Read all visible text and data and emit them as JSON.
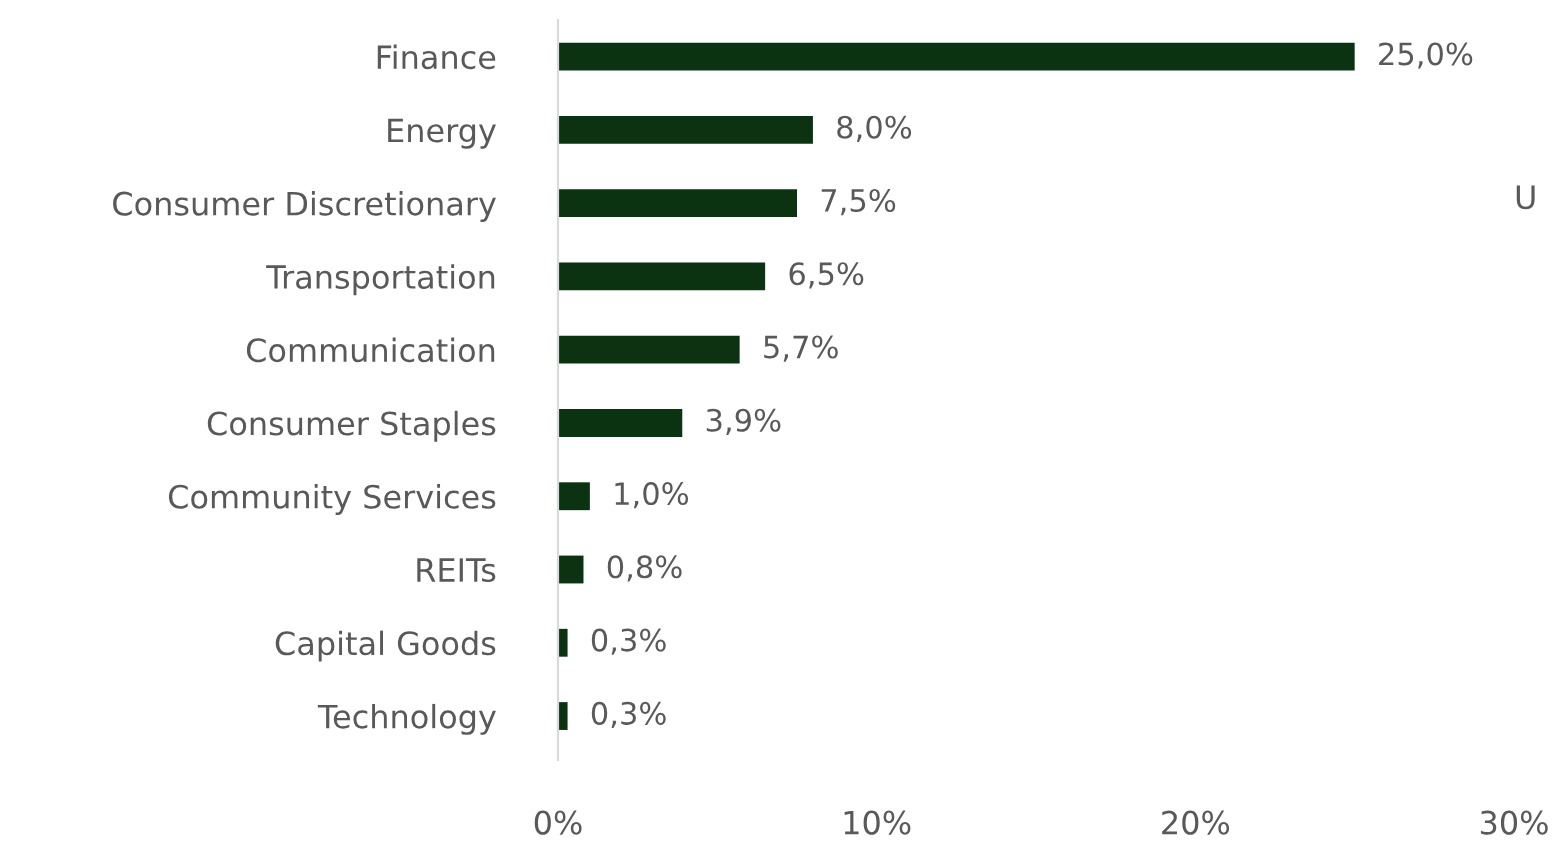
{
  "chart_data": {
    "type": "bar",
    "orientation": "horizontal",
    "categories": [
      "Finance",
      "Energy",
      "Consumer Discretionary",
      "Transportation",
      "Communication",
      "Consumer Staples",
      "Community Services",
      "REITs",
      "Capital Goods",
      "Technology"
    ],
    "values": [
      25.0,
      8.0,
      7.5,
      6.5,
      5.7,
      3.9,
      1.0,
      0.8,
      0.3,
      0.3
    ],
    "value_labels": [
      "25,0%",
      "8,0%",
      "7,5%",
      "6,5%",
      "5,7%",
      "3,9%",
      "1,0%",
      "0,8%",
      "0,3%",
      "0,3%"
    ],
    "color": "#0b3311",
    "xlim": [
      0,
      30
    ],
    "xticks": [
      {
        "value": 0,
        "label": "0%"
      },
      {
        "value": 10,
        "label": "10%"
      },
      {
        "value": 20,
        "label": "20%"
      },
      {
        "value": 30,
        "label": "30%"
      }
    ],
    "grid": false,
    "legend": false,
    "annotations": [
      "U"
    ]
  }
}
